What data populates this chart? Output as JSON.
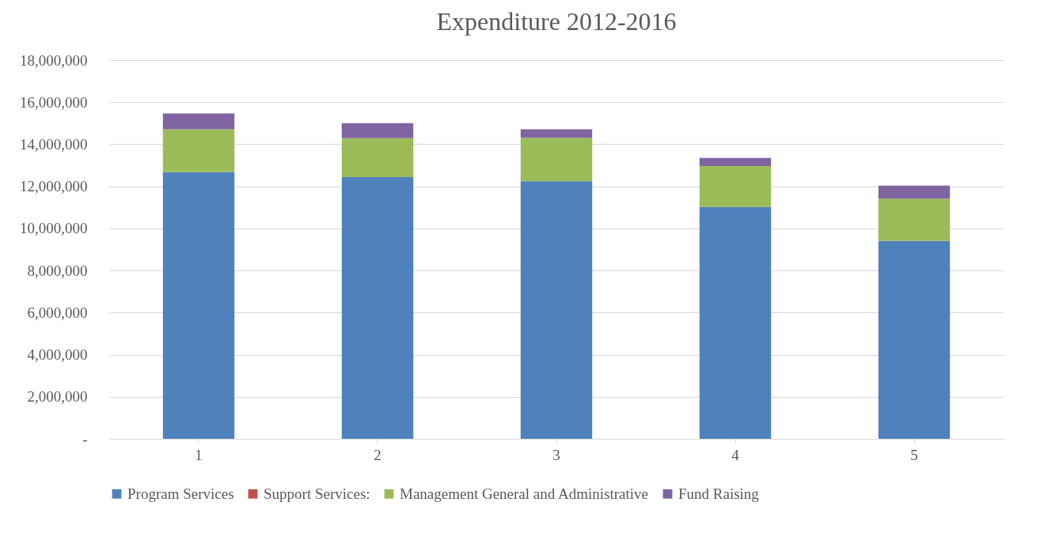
{
  "chart_data": {
    "type": "bar",
    "title": "Expenditure 2012-2016",
    "categories": [
      "1",
      "2",
      "3",
      "4",
      "5"
    ],
    "stacked": true,
    "series": [
      {
        "name": "Program Services",
        "color": "#4f81bd",
        "values": [
          12670000,
          12440000,
          12240000,
          11020000,
          9400000
        ]
      },
      {
        "name": "Support Services:",
        "color": "#c0504d",
        "values": [
          0,
          0,
          0,
          0,
          0
        ]
      },
      {
        "name": "Management General and Administrative",
        "color": "#9bbb59",
        "values": [
          2040000,
          1850000,
          2070000,
          1940000,
          2010000
        ]
      },
      {
        "name": "Fund Raising",
        "color": "#8064a2",
        "values": [
          750000,
          710000,
          400000,
          390000,
          620000
        ]
      }
    ],
    "ylim": [
      0,
      18000000
    ],
    "yticks": [
      {
        "value": 0,
        "label": "-"
      },
      {
        "value": 2000000,
        "label": "2,000,000"
      },
      {
        "value": 4000000,
        "label": "4,000,000"
      },
      {
        "value": 6000000,
        "label": "6,000,000"
      },
      {
        "value": 8000000,
        "label": "8,000,000"
      },
      {
        "value": 10000000,
        "label": "10,000,000"
      },
      {
        "value": 12000000,
        "label": "12,000,000"
      },
      {
        "value": 14000000,
        "label": "14,000,000"
      },
      {
        "value": 16000000,
        "label": "16,000,000"
      },
      {
        "value": 18000000,
        "label": "18,000,000"
      }
    ],
    "grid": "y",
    "legend": "bottom"
  }
}
